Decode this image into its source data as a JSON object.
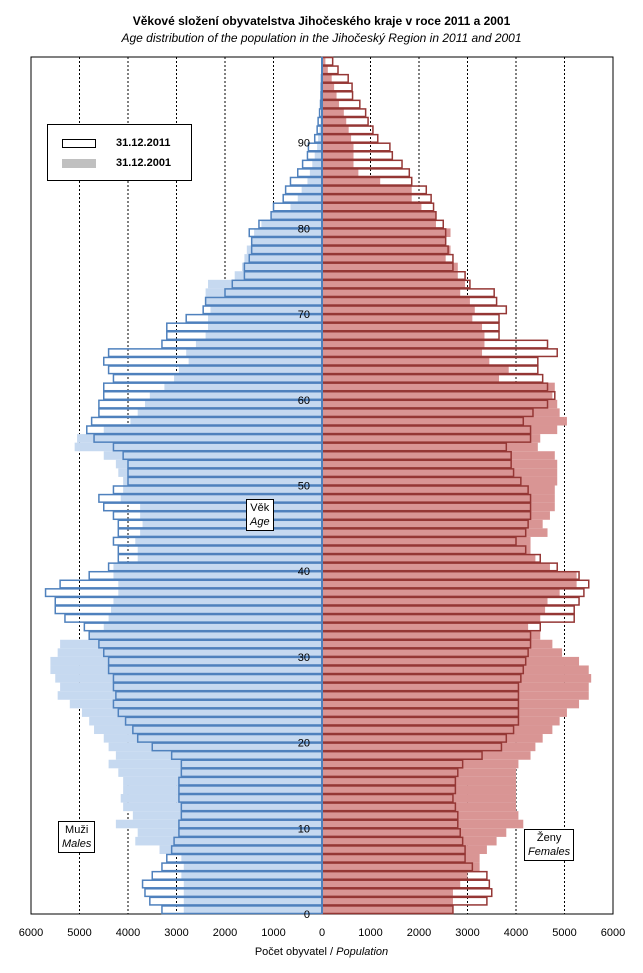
{
  "chart_data": {
    "type": "bar",
    "subtype": "population-pyramid",
    "title": "Věkové složení obyvatelstva  Jihočeského  kraje v roce 2011 a 2001",
    "subtitle": "Age distribution of the population  in the Jihočeský Region  in 2011  and 2001",
    "xlabel_cs": "Počet obyvatel",
    "xlabel_en": "Population",
    "ylabel_cs": "Věk",
    "ylabel_en": "Age",
    "males_cs": "Muži",
    "males_en": "Males",
    "females_cs": "Ženy",
    "females_en": "Females",
    "x_ticks": [
      "6000",
      "5000",
      "4000",
      "3000",
      "2000",
      "1000",
      "0",
      "1000",
      "2000",
      "3000",
      "4000",
      "5000",
      "6000"
    ],
    "xlim": [
      -6000,
      6000
    ],
    "y_ticks": [
      0,
      10,
      20,
      30,
      40,
      50,
      60,
      70,
      80,
      90
    ],
    "ylim": [
      0,
      100
    ],
    "grid": "vertical dashed",
    "legend_position": "top-left",
    "series": [
      {
        "name": "31.12.2011",
        "style": "outline",
        "males": [
          3300,
          3550,
          3650,
          3700,
          3500,
          3300,
          3200,
          3100,
          3050,
          2950,
          2950,
          2900,
          2900,
          2950,
          2950,
          2950,
          2900,
          2900,
          3100,
          3500,
          3800,
          3900,
          4050,
          4200,
          4300,
          4250,
          4300,
          4300,
          4400,
          4400,
          4500,
          4600,
          4800,
          4900,
          5300,
          5500,
          5500,
          5700,
          5400,
          4800,
          4400,
          4200,
          4200,
          4300,
          4200,
          4200,
          4300,
          4500,
          4600,
          4300,
          4000,
          4000,
          4000,
          4100,
          4300,
          4700,
          4850,
          4750,
          4600,
          4600,
          4500,
          4500,
          4300,
          4400,
          4500,
          4400,
          3300,
          3200,
          3200,
          2800,
          2450,
          2400,
          2000,
          1850,
          1600,
          1600,
          1500,
          1450,
          1450,
          1500,
          1300,
          1050,
          1000,
          800,
          750,
          650,
          500,
          400,
          300,
          280,
          150,
          100,
          80,
          50,
          30,
          20,
          15,
          10,
          5,
          5
        ],
        "females": [
          2700,
          3400,
          3500,
          3450,
          3400,
          3100,
          2950,
          2950,
          2900,
          2850,
          2800,
          2800,
          2750,
          2700,
          2750,
          2750,
          2800,
          2900,
          3300,
          3700,
          3800,
          3950,
          4050,
          4050,
          4050,
          4050,
          4050,
          4100,
          4150,
          4200,
          4250,
          4300,
          4300,
          4500,
          5200,
          5200,
          5300,
          5400,
          5500,
          5300,
          4850,
          4500,
          4200,
          4000,
          4200,
          4250,
          4300,
          4300,
          4300,
          4250,
          4100,
          3950,
          3900,
          3900,
          3800,
          4300,
          4300,
          4150,
          4350,
          4650,
          4800,
          4650,
          4550,
          4450,
          4450,
          4850,
          4650,
          3650,
          3650,
          3650,
          3800,
          3600,
          3550,
          3050,
          2950,
          2700,
          2700,
          2600,
          2550,
          2550,
          2500,
          2350,
          2300,
          2250,
          2150,
          1850,
          1800,
          1650,
          1450,
          1400,
          1150,
          1050,
          950,
          900,
          780,
          630,
          620,
          540,
          330,
          220
        ]
      },
      {
        "name": "31.12.2001",
        "style": "filled",
        "males": [
          2850,
          2850,
          2850,
          2850,
          2900,
          2850,
          2900,
          3350,
          3850,
          3800,
          4250,
          3900,
          4100,
          4150,
          4100,
          4100,
          4200,
          4400,
          4250,
          4400,
          4500,
          4700,
          4800,
          4950,
          5200,
          5450,
          5400,
          5500,
          5600,
          5600,
          5450,
          5400,
          4800,
          4500,
          4400,
          4350,
          4300,
          4200,
          4200,
          4300,
          4300,
          3800,
          3800,
          3850,
          3750,
          3700,
          3750,
          3750,
          4150,
          4100,
          4100,
          4200,
          4250,
          4500,
          5100,
          5050,
          4500,
          3950,
          3800,
          3650,
          3550,
          3250,
          3050,
          2950,
          2750,
          2800,
          2600,
          2400,
          2350,
          2350,
          2300,
          2400,
          2400,
          2350,
          1800,
          1650,
          1600,
          1550,
          1450,
          1400,
          1250,
          1050,
          650,
          500,
          420,
          300,
          250,
          200,
          150,
          100,
          80,
          50,
          30,
          20,
          15,
          10,
          8,
          5,
          3,
          2
        ],
        "females": [
          2700,
          2700,
          2700,
          2850,
          3000,
          3250,
          3250,
          3400,
          3600,
          3800,
          4150,
          4050,
          4000,
          4000,
          4000,
          4000,
          4000,
          4050,
          4300,
          4400,
          4550,
          4750,
          4900,
          5050,
          5300,
          5500,
          5500,
          5550,
          5500,
          5300,
          4950,
          4750,
          4500,
          4250,
          4500,
          4600,
          4650,
          4900,
          5250,
          5250,
          4700,
          4400,
          4300,
          4300,
          4650,
          4550,
          4700,
          4800,
          4800,
          4800,
          4850,
          4850,
          4850,
          4800,
          4450,
          4500,
          4850,
          5050,
          4900,
          4850,
          4750,
          4800,
          3650,
          3850,
          3450,
          3300,
          3350,
          3350,
          3300,
          3100,
          3150,
          3050,
          2850,
          2950,
          2800,
          2800,
          2550,
          2650,
          2550,
          2650,
          2350,
          2350,
          2050,
          1850,
          1850,
          1200,
          750,
          650,
          650,
          650,
          600,
          550,
          500,
          450,
          350,
          300,
          250,
          200,
          120,
          70
        ]
      }
    ],
    "colors": {
      "male_fill": "#c6d9f0",
      "male_outline": "#4f81bd",
      "female_fill": "#d99594",
      "female_outline": "#953735"
    }
  }
}
